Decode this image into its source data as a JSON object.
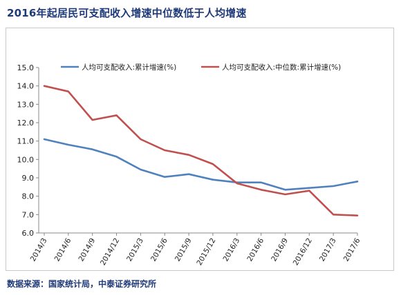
{
  "title": "2016年起居民可支配收入增速中位数低于人均增速",
  "source": "数据来源：国家统计局，中泰证券研究所",
  "chart_data": {
    "type": "line",
    "categories": [
      "2014/3",
      "2014/6",
      "2014/9",
      "2014/12",
      "2015/3",
      "2015/6",
      "2015/9",
      "2015/12",
      "2016/3",
      "2016/6",
      "2016/9",
      "2016/12",
      "2017/3",
      "2017/6"
    ],
    "ylim": [
      6.0,
      15.0
    ],
    "yticks": [
      "15.0",
      "14.0",
      "13.0",
      "12.0",
      "11.0",
      "10.0",
      "9.0",
      "8.0",
      "7.0",
      "6.0"
    ],
    "grid": false,
    "legend_position": "top",
    "series": [
      {
        "name": "人均可支配收入:累计增速(%)",
        "color": "#4f81bd",
        "values": [
          11.1,
          10.8,
          10.55,
          10.15,
          9.45,
          9.05,
          9.2,
          8.9,
          8.75,
          8.75,
          8.35,
          8.45,
          8.55,
          8.8
        ]
      },
      {
        "name": "人均可支配收入:中位数:累计增速(%)",
        "color": "#c0504d",
        "values": [
          14.0,
          13.7,
          12.15,
          12.4,
          11.1,
          10.5,
          10.25,
          9.75,
          8.7,
          8.35,
          8.1,
          8.3,
          7.0,
          6.95
        ]
      }
    ]
  }
}
